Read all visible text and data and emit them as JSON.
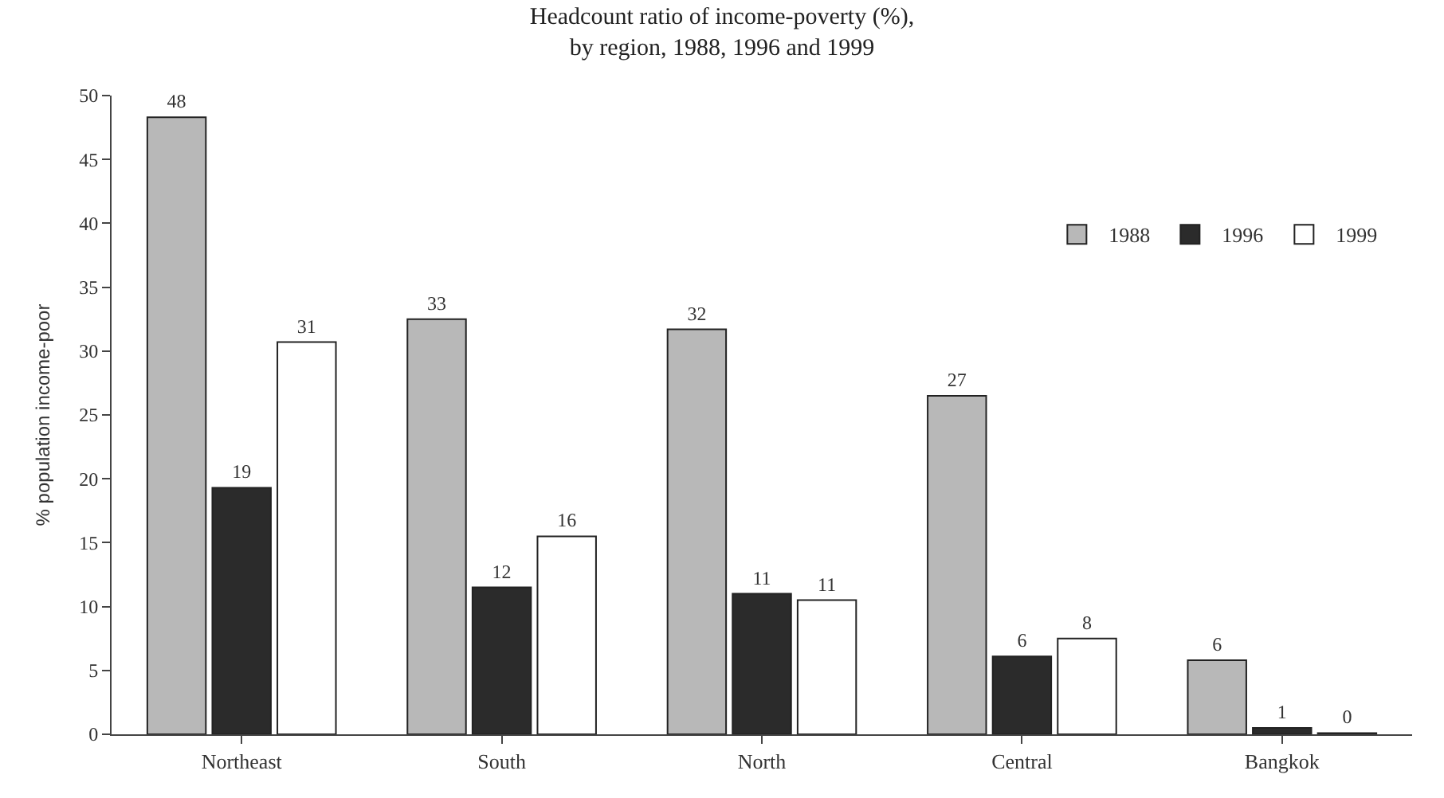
{
  "chart_data": {
    "type": "bar",
    "title": "Headcount ratio of income-poverty (%),\nby region, 1988, 1996 and 1999",
    "ylabel": "% population income-poor",
    "categories": [
      "Northeast",
      "South",
      "North",
      "Central",
      "Bangkok"
    ],
    "series": [
      {
        "name": "1988",
        "color": "#b8b8b8",
        "values": [
          48.3,
          32.5,
          31.7,
          26.5,
          5.8
        ],
        "value_labels": [
          "48",
          "33",
          "32",
          "27",
          "6"
        ]
      },
      {
        "name": "1996",
        "color": "#2b2b2b",
        "values": [
          19.3,
          11.5,
          11.0,
          6.1,
          0.5
        ],
        "value_labels": [
          "19",
          "12",
          "11",
          "6",
          "1"
        ]
      },
      {
        "name": "1999",
        "color": "#ffffff",
        "values": [
          30.7,
          15.5,
          10.5,
          7.5,
          0.1
        ],
        "value_labels": [
          "31",
          "16",
          "11",
          "8",
          "0"
        ]
      }
    ],
    "ylim": [
      0,
      50
    ],
    "yticks": [
      0,
      5,
      10,
      15,
      20,
      25,
      30,
      35,
      40,
      45,
      50
    ],
    "legend": "top right"
  }
}
